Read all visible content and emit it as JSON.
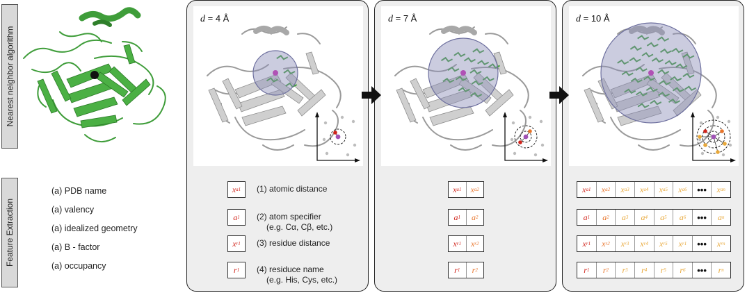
{
  "sidebar": {
    "nearest_neighbor": "Nearest neighbor algorithm",
    "feature_extraction": "Feature Extraction"
  },
  "properties": [
    "(a) PDB name",
    "(a) valency",
    "(a) idealized geometry",
    "(a) B - factor",
    "(a) occupancy"
  ],
  "panels": [
    {
      "d_var": "d",
      "d_value": "= 4 Å"
    },
    {
      "d_var": "d",
      "d_value": "= 7 Å"
    },
    {
      "d_var": "d",
      "d_value": "= 10 Å"
    }
  ],
  "features": [
    {
      "label": "(1) atomic distance",
      "example": ""
    },
    {
      "label": "(2) atom specifier",
      "example": "(e.g. Cα, Cβ, etc.)"
    },
    {
      "label": "(3) residue distance",
      "example": ""
    },
    {
      "label": "(4) residuce name",
      "example": "(e.g. His, Cys, etc.)"
    }
  ],
  "feature_rows": [
    {
      "sym": "x",
      "subs": [
        "a1",
        "a2",
        "a3",
        "a4",
        "a5",
        "a6",
        "an"
      ]
    },
    {
      "sym": "a",
      "subs": [
        "1",
        "2",
        "3",
        "4",
        "5",
        "6",
        "n"
      ]
    },
    {
      "sym": "x",
      "subs": [
        "r1",
        "r2",
        "r3",
        "r4",
        "r5",
        "r1",
        "rn"
      ]
    },
    {
      "sym": "r",
      "subs": [
        "1",
        "2",
        "3",
        "4",
        "5",
        "6",
        "n"
      ]
    }
  ],
  "ellipsis": "•••",
  "colors": {
    "protein_green": "#3f9d3a",
    "protein_gray": "#b9b9b9",
    "sphere": "#8c8db8",
    "red": "#d0241b",
    "orange": "#e8742a",
    "yellow": "#e8a83a",
    "panel_bg": "#eeeeee"
  }
}
